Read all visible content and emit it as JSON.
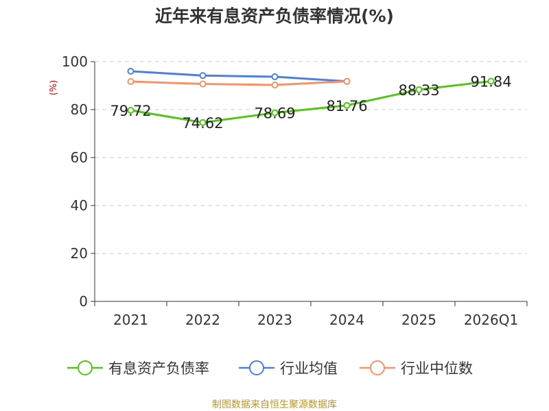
{
  "chart_data": {
    "type": "line",
    "title": "近年来有息资产负债率情况(%)",
    "ylabel": "(%)",
    "categories": [
      "2021",
      "2022",
      "2023",
      "2024",
      "2025",
      "2026Q1"
    ],
    "ylim": [
      0,
      100
    ],
    "yticks": [
      0,
      20,
      40,
      60,
      80,
      100
    ],
    "grid": true,
    "legend": "bottom",
    "series": [
      {
        "name": "有息资产负债率",
        "color": "#52c41a",
        "values": [
          79.72,
          74.62,
          78.69,
          81.76,
          88.33,
          91.84
        ],
        "labels": [
          "79.72",
          "74.62",
          "78.69",
          "81.76",
          "88.33",
          "91.84"
        ]
      },
      {
        "name": "行业均值",
        "color": "#4e7fd9",
        "values": [
          96.0,
          94.2,
          93.7,
          91.8,
          null,
          null
        ]
      },
      {
        "name": "行业中位数",
        "color": "#f4926a",
        "values": [
          91.7,
          90.7,
          90.3,
          91.8,
          null,
          null
        ]
      }
    ]
  },
  "source": "制图数据来自恒生聚源数据库"
}
